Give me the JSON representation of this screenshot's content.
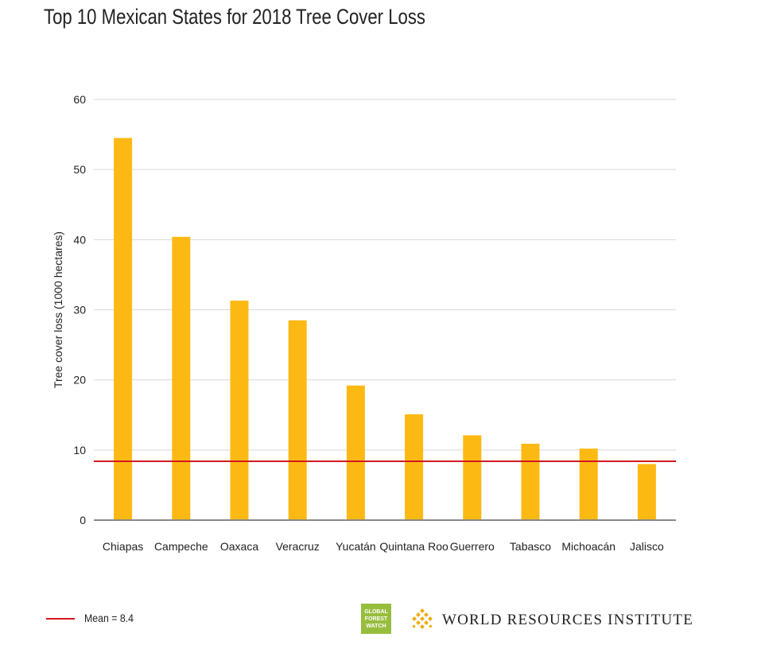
{
  "title": "Top 10 Mexican States for 2018 Tree Cover Loss",
  "colors": {
    "bar": "#fdb913",
    "mean_line": "#d0191f",
    "grid": "#d9d9d9",
    "axis": "#888888",
    "gfw_logo": "#97bd3d",
    "wri_logo": "#f0a800"
  },
  "chart_data": {
    "type": "bar",
    "title": "Top 10 Mexican States for 2018 Tree Cover Loss",
    "xlabel": "",
    "ylabel": "Tree cover loss (1000 hectares)",
    "categories": [
      "Chiapas",
      "Campeche",
      "Oaxaca",
      "Veracruz",
      "Yucatán",
      "Quintana Roo",
      "Guerrero",
      "Tabasco",
      "Michoacán",
      "Jalisco"
    ],
    "values": [
      54.5,
      40.4,
      31.3,
      28.5,
      19.2,
      15.1,
      12.1,
      10.9,
      10.2,
      8.0
    ],
    "ylim": [
      0,
      60
    ],
    "yticks": [
      0,
      10,
      20,
      30,
      40,
      50,
      60
    ],
    "grid": true,
    "reference_line": {
      "value": 8.4,
      "label": "Mean = 8.4"
    },
    "legend_position": "bottom-left"
  },
  "legend": {
    "mean_label": "Mean = 8.4"
  },
  "logos": {
    "gfw_lines": [
      "GLOBAL",
      "FOREST",
      "WATCH"
    ],
    "wri_text": "WORLD RESOURCES INSTITUTE"
  }
}
